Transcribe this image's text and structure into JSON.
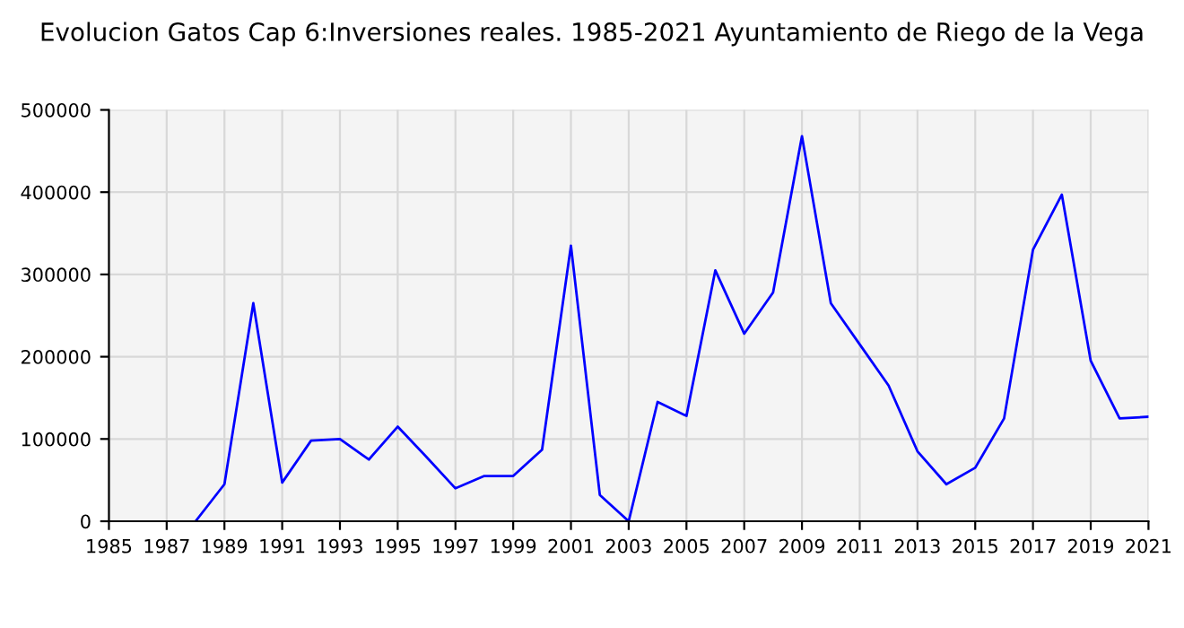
{
  "chart_data": {
    "type": "line",
    "title": "Evolucion Gatos Cap 6:Inversiones reales. 1985-2021 Ayuntamiento de Riego de la Vega",
    "x": [
      1988,
      1989,
      1990,
      1991,
      1992,
      1993,
      1994,
      1995,
      1996,
      1997,
      1998,
      1999,
      2000,
      2001,
      2002,
      2003,
      2004,
      2005,
      2006,
      2007,
      2008,
      2009,
      2010,
      2011,
      2012,
      2013,
      2014,
      2015,
      2016,
      2017,
      2018,
      2019,
      2020,
      2021
    ],
    "series": [
      {
        "color": "#0000ff",
        "values": [
          0,
          45000,
          265000,
          47000,
          98000,
          100000,
          75000,
          115000,
          78000,
          40000,
          55000,
          55000,
          87000,
          335000,
          32000,
          0,
          145000,
          128000,
          305000,
          228000,
          278000,
          468000,
          265000,
          215000,
          165000,
          85000,
          45000,
          65000,
          125000,
          330000,
          397000,
          195000,
          125000,
          127000
        ]
      }
    ],
    "xlim": [
      1985,
      2021
    ],
    "xticks": [
      1985,
      1987,
      1989,
      1991,
      1993,
      1995,
      1997,
      1999,
      2001,
      2003,
      2005,
      2007,
      2009,
      2011,
      2013,
      2015,
      2017,
      2019,
      2021
    ],
    "ylim": [
      0,
      500000
    ],
    "yticks": [
      0,
      100000,
      200000,
      300000,
      400000,
      500000
    ],
    "grid": true,
    "marker": "none",
    "line_style": "solid"
  }
}
